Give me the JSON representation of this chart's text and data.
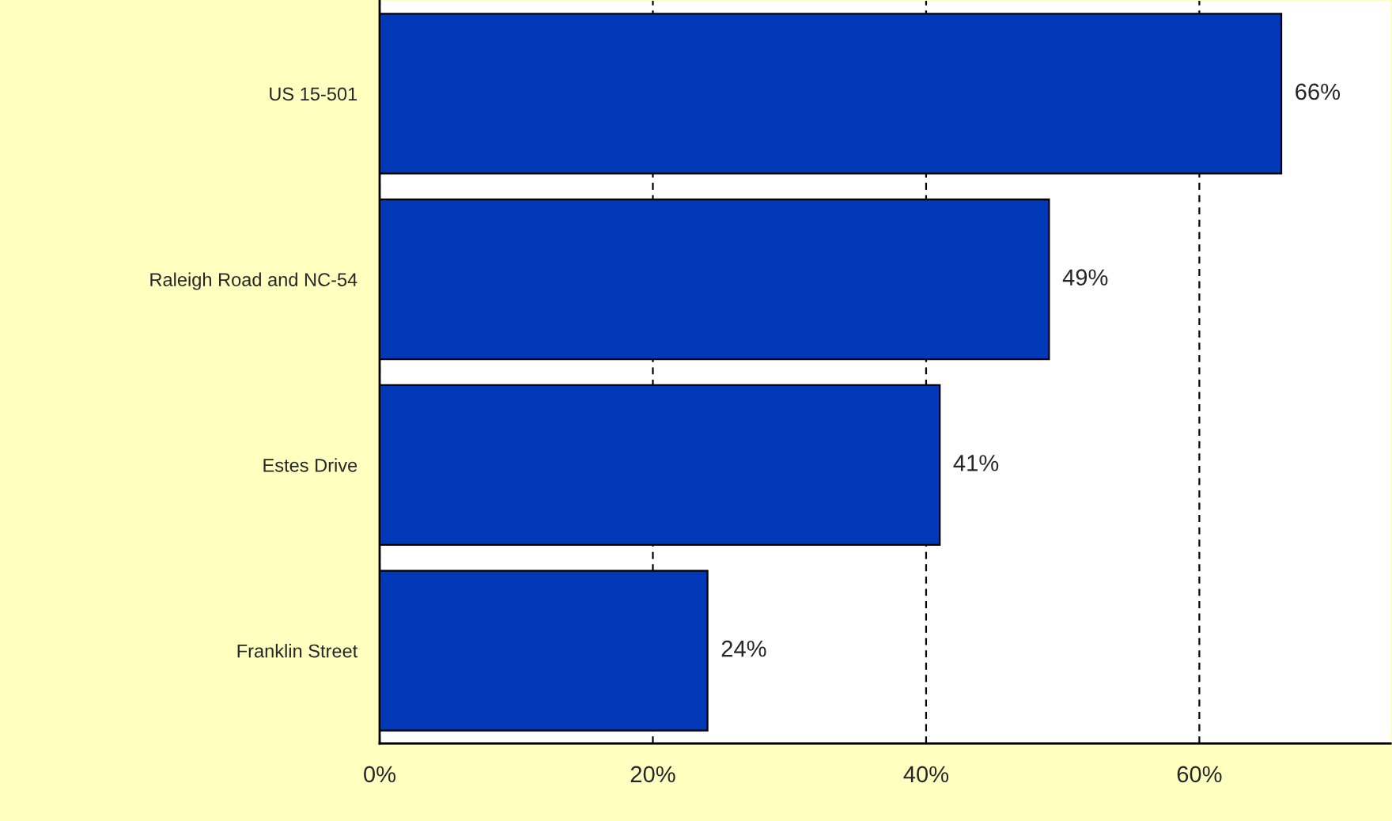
{
  "chart_data": {
    "type": "bar",
    "orientation": "horizontal",
    "categories": [
      "US 15-501",
      "Raleigh Road and NC-54",
      "Estes Drive",
      "Franklin Street"
    ],
    "values": [
      66,
      49,
      41,
      24
    ],
    "value_labels": [
      "66%",
      "49%",
      "41%",
      "24%"
    ],
    "color": "#0038b8",
    "xlim": [
      0,
      74
    ],
    "xticks": [
      {
        "value": 0,
        "label": "0%"
      },
      {
        "value": 20,
        "label": "20%"
      },
      {
        "value": 40,
        "label": "40%"
      },
      {
        "value": 60,
        "label": "60%"
      }
    ],
    "grid": "x",
    "legend": false
  }
}
